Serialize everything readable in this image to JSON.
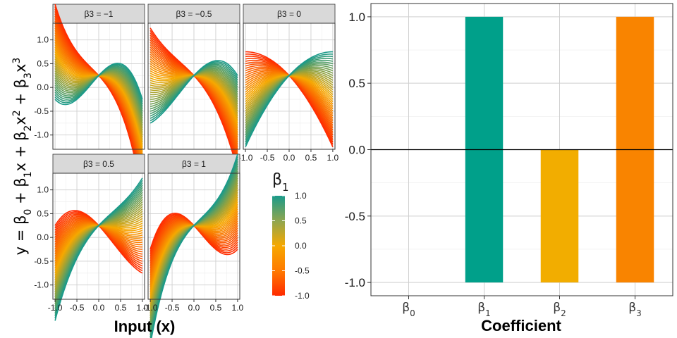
{
  "chart_data": [
    {
      "type": "line",
      "facet_panels": [
        {
          "label": "β3 = −1",
          "beta3": -1
        },
        {
          "label": "β3 = −0.5",
          "beta3": -0.5
        },
        {
          "label": "β3 = 0",
          "beta3": 0
        },
        {
          "label": "β3 = 0.5",
          "beta3": 0.5
        },
        {
          "label": "β3 = 1",
          "beta3": 1
        }
      ],
      "model": {
        "beta0": 0.25,
        "beta2": -0.5
      },
      "beta1_range": [
        -1,
        1
      ],
      "x_range": [
        -1,
        1
      ],
      "xlabel": "Input (x)",
      "ylabel": "y = β0 + β1x + β2x2 + β3x3",
      "xlim": [
        -1.05,
        1.05
      ],
      "ylim": [
        -1.3,
        1.35
      ],
      "x_ticks": [
        "-1.0",
        "-0.5",
        "0.0",
        "0.5",
        "1.0"
      ],
      "y_ticks": [
        "1.0",
        "0.5",
        "0.0",
        "-0.5",
        "-1.0"
      ],
      "legend": {
        "title": "β1",
        "ticks": [
          "1.0",
          "0.5",
          "0.0",
          "-0.5",
          "-1.0"
        ],
        "placement": "right",
        "colors": {
          "low": "#ff2a00",
          "mid": "#f6a800",
          "high": "#1a9a8a"
        }
      },
      "grid": true
    },
    {
      "type": "bar",
      "categories": [
        "β0",
        "β1",
        "β2",
        "β3"
      ],
      "series": [
        {
          "low": [
            0,
            -1,
            -1,
            -1
          ],
          "high": [
            0,
            1,
            0,
            1
          ]
        }
      ],
      "bar_colors": [
        "#00a08a",
        "#00a08a",
        "#f2ad00",
        "#f98400"
      ],
      "xlabel": "Coefficient",
      "ylabel": "",
      "ylim": [
        -1.1,
        1.1
      ],
      "y_ticks": [
        "1.0",
        "0.5",
        "0.0",
        "-0.5",
        "-1.0"
      ],
      "grid": true
    }
  ]
}
